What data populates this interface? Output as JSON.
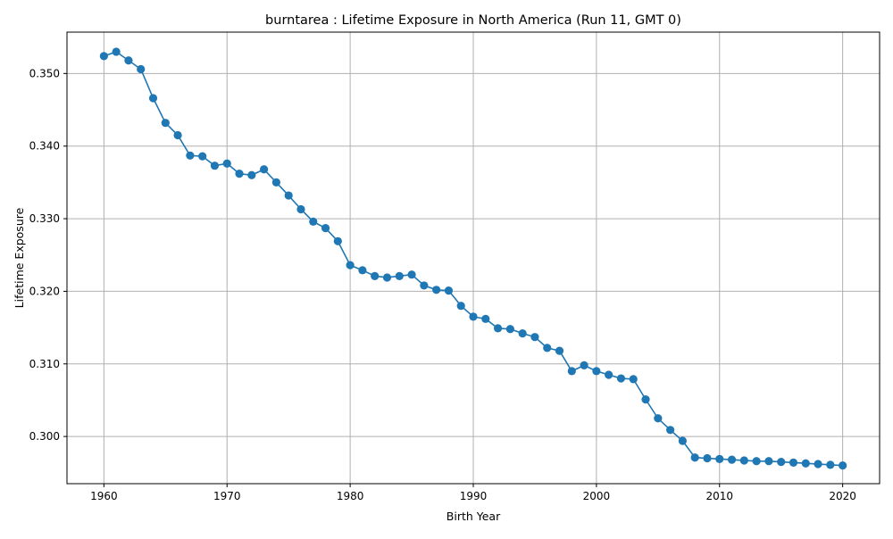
{
  "chart_data": {
    "type": "line",
    "title": "burntarea : Lifetime Exposure in North America (Run 11, GMT 0)",
    "xlabel": "Birth Year",
    "ylabel": "Lifetime Exposure",
    "xlim": [
      1957,
      2023
    ],
    "ylim": [
      0.2935,
      0.3557
    ],
    "xticks": [
      1960,
      1970,
      1980,
      1990,
      2000,
      2010,
      2020
    ],
    "yticks": [
      0.3,
      0.31,
      0.32,
      0.33,
      0.34,
      0.35
    ],
    "ytick_labels": [
      "0.300",
      "0.310",
      "0.320",
      "0.330",
      "0.340",
      "0.350"
    ],
    "grid": true,
    "legend": "none",
    "series": [
      {
        "color": "#1f77b4",
        "marker": "circle",
        "x": [
          1960,
          1961,
          1962,
          1963,
          1964,
          1965,
          1966,
          1967,
          1968,
          1969,
          1970,
          1971,
          1972,
          1973,
          1974,
          1975,
          1976,
          1977,
          1978,
          1979,
          1980,
          1981,
          1982,
          1983,
          1984,
          1985,
          1986,
          1987,
          1988,
          1989,
          1990,
          1991,
          1992,
          1993,
          1994,
          1995,
          1996,
          1997,
          1998,
          1999,
          2000,
          2001,
          2002,
          2003,
          2004,
          2005,
          2006,
          2007,
          2008,
          2009,
          2010,
          2011,
          2012,
          2013,
          2014,
          2015,
          2016,
          2017,
          2018,
          2019,
          2020
        ],
        "y": [
          0.3524,
          0.353,
          0.3518,
          0.3506,
          0.3466,
          0.3432,
          0.3415,
          0.3387,
          0.3386,
          0.3373,
          0.3376,
          0.3362,
          0.336,
          0.3368,
          0.335,
          0.3332,
          0.3313,
          0.3296,
          0.3287,
          0.3269,
          0.3236,
          0.3229,
          0.3221,
          0.3219,
          0.3221,
          0.3223,
          0.3208,
          0.3202,
          0.3201,
          0.318,
          0.3165,
          0.3162,
          0.3149,
          0.3148,
          0.3142,
          0.3137,
          0.3122,
          0.3118,
          0.309,
          0.3098,
          0.309,
          0.3085,
          0.308,
          0.3079,
          0.3051,
          0.3025,
          0.3009,
          0.2994,
          0.2971,
          0.297,
          0.2969,
          0.2968,
          0.2967,
          0.2966,
          0.2966,
          0.2965,
          0.2964,
          0.2963,
          0.2962,
          0.2961,
          0.296
        ]
      }
    ]
  }
}
